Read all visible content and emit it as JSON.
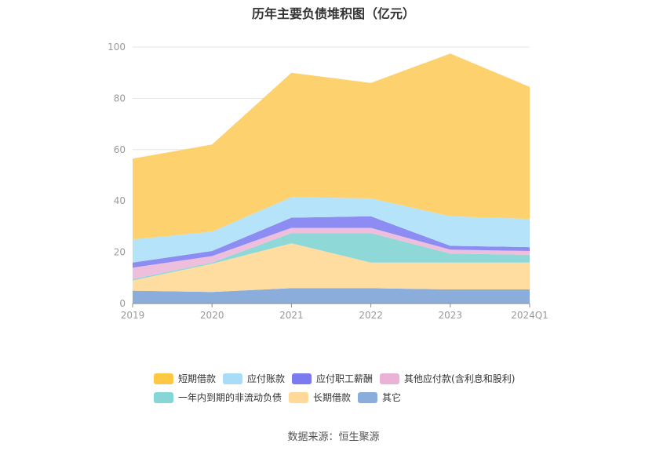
{
  "title": "历年主要负债堆积图（亿元）",
  "source": "数据来源：恒生聚源",
  "chart_data": {
    "type": "area",
    "stacked": true,
    "categories": [
      "2019",
      "2020",
      "2021",
      "2022",
      "2023",
      "2024Q1"
    ],
    "ylim": [
      0,
      100
    ],
    "yticks": [
      0,
      20,
      40,
      60,
      80,
      100
    ],
    "grid": true,
    "legend_position": "bottom",
    "series": [
      {
        "name": "其它",
        "color": "#8aaddc",
        "values": [
          5.0,
          4.5,
          6.0,
          6.0,
          5.5,
          5.5
        ]
      },
      {
        "name": "长期借款",
        "color": "#ffdca0",
        "values": [
          4.0,
          11.0,
          17.5,
          10.0,
          10.5,
          10.5
        ]
      },
      {
        "name": "一年内到期的非流动负债",
        "color": "#8fd8d8",
        "values": [
          0.5,
          0.5,
          4.0,
          11.5,
          3.5,
          3.0
        ]
      },
      {
        "name": "其他应付款(含利息和股利)",
        "color": "#eebfdc",
        "values": [
          4.5,
          2.5,
          2.0,
          2.0,
          1.5,
          1.5
        ]
      },
      {
        "name": "应付职工薪酬",
        "color": "#8c8cf2",
        "values": [
          2.0,
          2.0,
          4.0,
          4.5,
          1.5,
          1.5
        ]
      },
      {
        "name": "应付账款",
        "color": "#b5e3fa",
        "values": [
          9.0,
          7.5,
          8.0,
          7.0,
          11.5,
          11.0
        ]
      },
      {
        "name": "短期借款",
        "color": "#fdd26e",
        "values": [
          31.5,
          34.0,
          48.5,
          45.0,
          63.5,
          51.5
        ]
      }
    ]
  },
  "legend": {
    "row1": [
      {
        "label": "短期借款",
        "color": "#fdc843"
      },
      {
        "label": "应付账款",
        "color": "#a8dcf7"
      },
      {
        "label": "应付职工薪酬",
        "color": "#7b7bef"
      },
      {
        "label": "其他应付款(含利息和股利)",
        "color": "#eab3d6"
      }
    ],
    "row2": [
      {
        "label": "一年内到期的非流动负债",
        "color": "#86d6d6"
      },
      {
        "label": "长期借款",
        "color": "#ffd99a"
      },
      {
        "label": "其它",
        "color": "#8aaddc"
      }
    ]
  }
}
